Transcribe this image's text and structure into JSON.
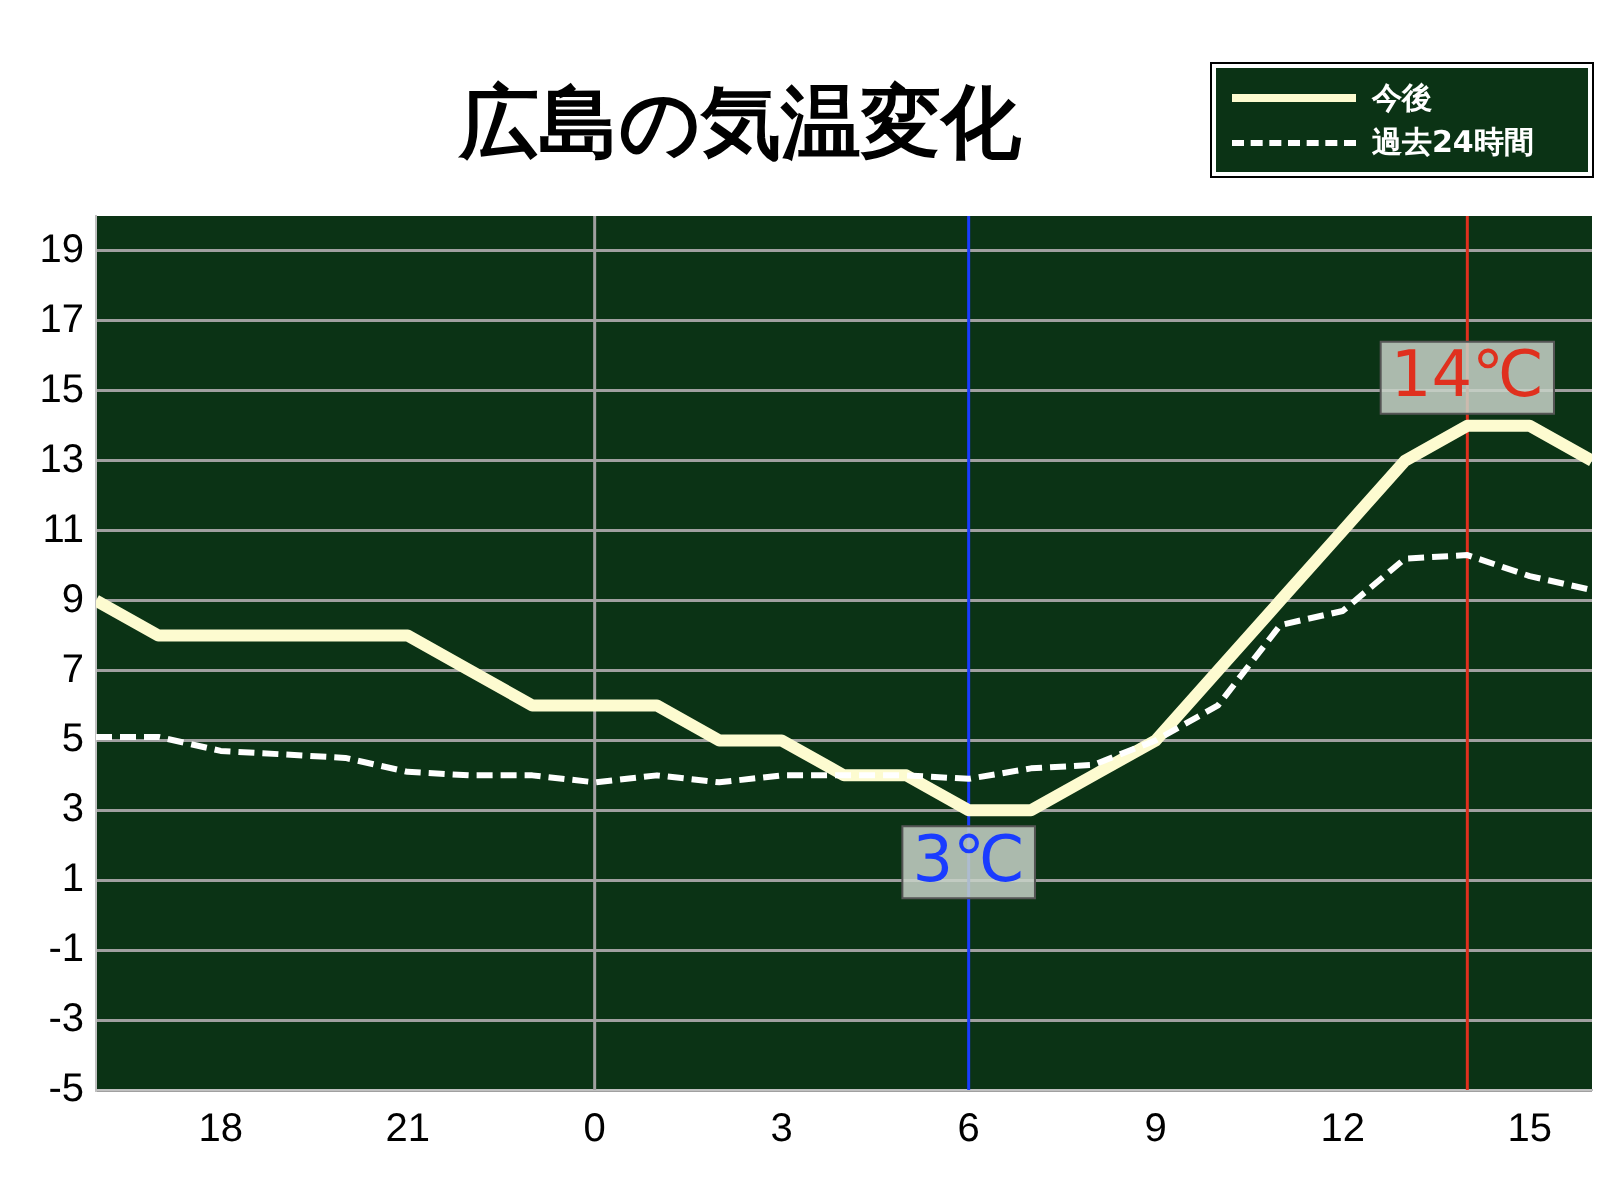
{
  "chart_data": {
    "type": "line",
    "title": "広島の気温変化",
    "x": [
      "--01-01T16:00",
      "--01-01T17:00",
      "--01-01T18:00",
      "--01-01T19:00",
      "--01-01T20:00",
      "--01-01T21:00",
      "--01-01T22:00",
      "--01-01T23:00",
      "--01-02T00:00",
      "--01-02T01:00",
      "--01-02T02:00",
      "--01-02T03:00",
      "--01-02T04:00",
      "--01-02T05:00",
      "--01-02T06:00",
      "--01-02T07:00",
      "--01-02T08:00",
      "--01-02T09:00",
      "--01-02T10:00",
      "--01-02T11:00",
      "--01-02T12:00",
      "--01-02T13:00",
      "--01-02T14:00",
      "--01-02T15:00",
      "--01-02T16:00"
    ],
    "xlim": [
      "--01-01T16:00",
      "--01-02T16:00"
    ],
    "xticks": [
      {
        "value": "--01-01T18:00",
        "label": "18"
      },
      {
        "value": "--01-01T21:00",
        "label": "21"
      },
      {
        "value": "--01-02T00:00",
        "label": "0"
      },
      {
        "value": "--01-02T03:00",
        "label": "3"
      },
      {
        "value": "--01-02T06:00",
        "label": "6"
      },
      {
        "value": "--01-02T09:00",
        "label": "9"
      },
      {
        "value": "--01-02T12:00",
        "label": "12"
      },
      {
        "value": "--01-02T15:00",
        "label": "15"
      }
    ],
    "ylim": [
      -5,
      20
    ],
    "yticks": [
      -5,
      -3,
      -1,
      1,
      3,
      5,
      7,
      9,
      11,
      13,
      15,
      17,
      19
    ],
    "series": [
      {
        "name": "今後",
        "color": "#fdfbd0",
        "line_style": "solid",
        "values": [
          9,
          8,
          8,
          8,
          8,
          8,
          7,
          6,
          6,
          6,
          5,
          5,
          4,
          4,
          3,
          3,
          4,
          5,
          7,
          9,
          11,
          13,
          14,
          14,
          13
        ]
      },
      {
        "name": "過去24時間",
        "color": "#ffffff",
        "line_style": "dashed",
        "values": [
          5.1,
          5.1,
          4.7,
          4.6,
          4.5,
          4.1,
          4.0,
          4.0,
          3.8,
          4.0,
          3.8,
          4.0,
          4.0,
          4.0,
          3.9,
          4.2,
          4.3,
          5.0,
          6.0,
          8.3,
          8.7,
          10.2,
          10.3,
          9.7,
          9.3
        ]
      }
    ],
    "ref_lines": [
      {
        "axis": "x",
        "value": "--01-02T00:00",
        "color": "#a0a0a0"
      },
      {
        "axis": "x",
        "value": "--01-02T06:00",
        "color": "#1a3cff"
      },
      {
        "axis": "x",
        "value": "--01-02T14:00",
        "color": "#e0301e"
      }
    ],
    "annotations": [
      {
        "text": "3℃",
        "x": "--01-02T06:00",
        "y": 3
      },
      {
        "text": "14℃",
        "x": "--01-02T14:00",
        "y": 14
      }
    ],
    "grid": "y",
    "legend": "top right",
    "marker": "none"
  }
}
